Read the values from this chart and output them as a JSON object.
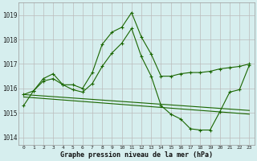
{
  "title": "Graphe pression niveau de la mer (hPa)",
  "bg_color": "#d6eeee",
  "grid_color": "#bbbbbb",
  "line_color": "#1a6600",
  "xlim": [
    -0.5,
    23.5
  ],
  "ylim": [
    1013.7,
    1019.5
  ],
  "yticks": [
    1014,
    1015,
    1016,
    1017,
    1018,
    1019
  ],
  "xticks": [
    0,
    1,
    2,
    3,
    4,
    5,
    6,
    7,
    8,
    9,
    10,
    11,
    12,
    13,
    14,
    15,
    16,
    17,
    18,
    19,
    20,
    21,
    22,
    23
  ],
  "xtick_labels": [
    "0",
    "1",
    "2",
    "3",
    "4",
    "5",
    "6",
    "7",
    "8",
    "9",
    "10",
    "11",
    "12",
    "13",
    "14",
    "15",
    "16",
    "17",
    "18",
    "19",
    "20",
    "21",
    "22",
    "23"
  ],
  "series": [
    {
      "x": [
        0,
        1,
        2,
        3,
        4,
        5,
        6,
        7,
        8,
        9,
        10,
        11,
        12,
        13,
        14,
        15,
        16,
        17,
        18,
        19,
        20,
        21,
        22,
        23
      ],
      "y": [
        1015.3,
        1015.9,
        1016.4,
        1016.6,
        1016.15,
        1016.15,
        1016.0,
        1016.65,
        1017.8,
        1018.3,
        1018.5,
        1019.1,
        1018.1,
        1017.4,
        1016.5,
        1016.5,
        1016.6,
        1016.65,
        1016.65,
        1016.7,
        1016.8,
        1016.85,
        1016.9,
        1017.0
      ],
      "marker": true
    },
    {
      "x": [
        0,
        1,
        2,
        3,
        4,
        5,
        6,
        7,
        8,
        9,
        10,
        11,
        12,
        13,
        14,
        15,
        16,
        17,
        18,
        19,
        20,
        21,
        22,
        23
      ],
      "y": [
        1015.75,
        1015.9,
        1016.3,
        1016.4,
        1016.15,
        1015.95,
        1015.85,
        1016.2,
        1016.9,
        1017.45,
        1017.85,
        1018.45,
        1017.3,
        1016.5,
        1015.3,
        1014.95,
        1014.75,
        1014.35,
        1014.3,
        1014.3,
        1015.05,
        1015.85,
        1015.95,
        1016.95
      ],
      "marker": true
    },
    {
      "x": [
        0,
        23
      ],
      "y": [
        1015.75,
        1015.1
      ],
      "marker": false
    },
    {
      "x": [
        0,
        23
      ],
      "y": [
        1015.65,
        1014.95
      ],
      "marker": false
    }
  ]
}
